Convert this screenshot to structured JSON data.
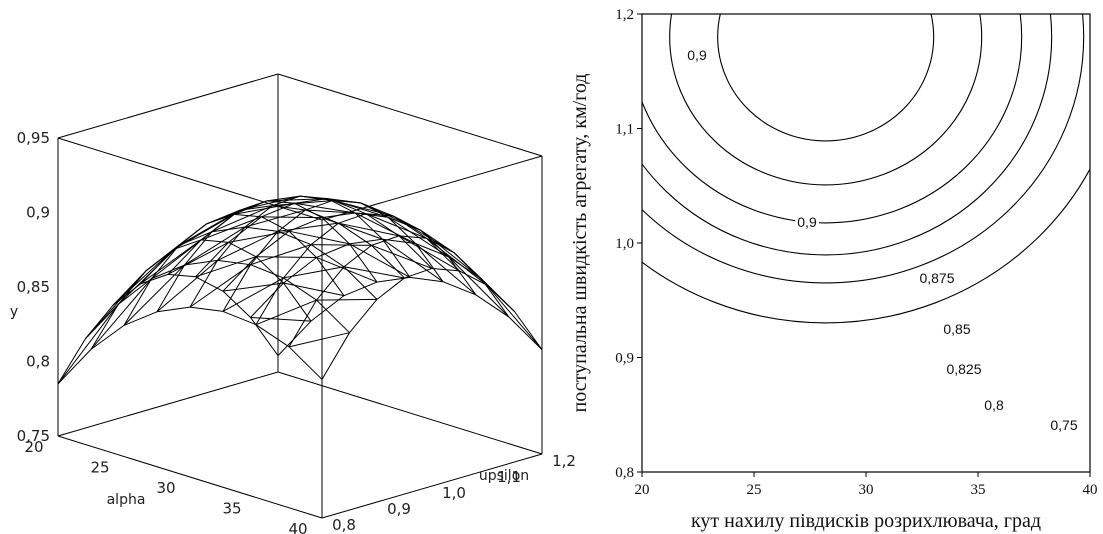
{
  "chart_data": [
    {
      "type": "surface",
      "xlabel": "alpha",
      "ylabel": "upsilon",
      "zlabel": "y",
      "x_ticks": [
        "20",
        "25",
        "30",
        "35",
        "40"
      ],
      "y_ticks": [
        "0,8",
        "0,9",
        "1,0",
        "1,1",
        "1,2"
      ],
      "z_ticks": [
        "0,75",
        "0,8",
        "0,85",
        "0,9",
        "0,95"
      ],
      "xlim": [
        20,
        40
      ],
      "ylim": [
        0.8,
        1.2
      ],
      "zlim": [
        0.75,
        0.95
      ],
      "x": [
        20,
        22.5,
        25,
        27.5,
        30,
        32.5,
        35,
        37.5,
        40
      ],
      "y": [
        0.8,
        0.85,
        0.9,
        0.95,
        1.0,
        1.05,
        1.1,
        1.15,
        1.2
      ],
      "z": [
        [
          0.785,
          0.815,
          0.838,
          0.854,
          0.864,
          0.868,
          0.866,
          0.858,
          0.843
        ],
        [
          0.81,
          0.84,
          0.864,
          0.88,
          0.89,
          0.894,
          0.892,
          0.884,
          0.869
        ],
        [
          0.827,
          0.857,
          0.881,
          0.897,
          0.907,
          0.911,
          0.909,
          0.901,
          0.886
        ],
        [
          0.836,
          0.866,
          0.89,
          0.906,
          0.916,
          0.92,
          0.918,
          0.91,
          0.895
        ],
        [
          0.837,
          0.867,
          0.891,
          0.907,
          0.917,
          0.921,
          0.919,
          0.911,
          0.896
        ],
        [
          0.83,
          0.86,
          0.884,
          0.9,
          0.91,
          0.914,
          0.912,
          0.904,
          0.889
        ],
        [
          0.815,
          0.845,
          0.869,
          0.885,
          0.895,
          0.899,
          0.897,
          0.889,
          0.874
        ],
        [
          0.792,
          0.822,
          0.846,
          0.862,
          0.872,
          0.876,
          0.874,
          0.866,
          0.851
        ],
        [
          0.761,
          0.791,
          0.815,
          0.831,
          0.841,
          0.845,
          0.843,
          0.835,
          0.82
        ]
      ]
    },
    {
      "type": "contour",
      "xlabel": "кут нахилу півдисків розрихлювача, град",
      "ylabel": "поступальна швидкість агрегату, км/год",
      "x_ticks": [
        "20",
        "25",
        "30",
        "35",
        "40"
      ],
      "y_ticks": [
        "0,8",
        "0,9",
        "1,0",
        "1,1",
        "1,2"
      ],
      "xlim": [
        20,
        40
      ],
      "ylim": [
        0.8,
        1.2
      ],
      "grid": false,
      "levels": [
        0.75,
        0.8,
        0.825,
        0.85,
        0.875,
        0.9
      ],
      "level_labels": [
        "0,75",
        "0,8",
        "0,825",
        "0,85",
        "0,875",
        "0,9"
      ],
      "extra_label": "0,9"
    }
  ]
}
